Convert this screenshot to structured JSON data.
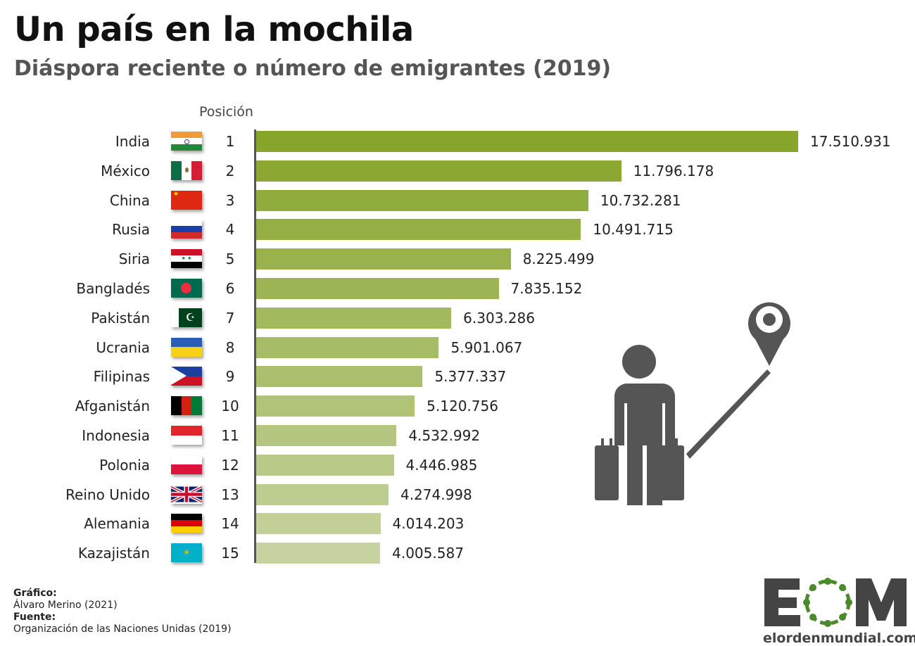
{
  "title": "Un país en la mochila",
  "subtitle": "Diáspora reciente o número de emigrantes (2019)",
  "chart_data": {
    "type": "bar",
    "orientation": "horizontal",
    "column_header": "Posición",
    "categories": [
      "India",
      "México",
      "China",
      "Rusia",
      "Siria",
      "Bangladés",
      "Pakistán",
      "Ucrania",
      "Filipinas",
      "Afganistán",
      "Indonesia",
      "Polonia",
      "Reino Unido",
      "Alemania",
      "Kazajistán"
    ],
    "ranks": [
      1,
      2,
      3,
      4,
      5,
      6,
      7,
      8,
      9,
      10,
      11,
      12,
      13,
      14,
      15
    ],
    "values": [
      17510931,
      11796178,
      10732281,
      10491715,
      8225499,
      7835152,
      6303286,
      5901067,
      5377337,
      5120756,
      4532992,
      4446985,
      4274998,
      4014203,
      4005587
    ],
    "value_labels": [
      "17.510.931",
      "11.796.178",
      "10.732.281",
      "10.491.715",
      "8.225.499",
      "7.835.152",
      "6.303.286",
      "5.901.067",
      "5.377.337",
      "5.120.756",
      "4.532.992",
      "4.446.985",
      "4.274.998",
      "4.014.203",
      "4.005.587"
    ],
    "bar_color_top": "#87a52b",
    "bar_color_bottom": "#c6d3a0",
    "grid": false
  },
  "credits": {
    "graphic_label": "Gráfico:",
    "graphic_author": "Álvaro Merino (2021)",
    "source_label": "Fuente:",
    "source": "Organización de las Naciones Unidas (2019)"
  },
  "logo": {
    "text": "EOM",
    "url_text": "elordenmundial.com",
    "green": "#4a8a2a",
    "gray": "#444444"
  },
  "icons": [
    "traveler-with-suitcases-icon",
    "location-pin-icon"
  ]
}
